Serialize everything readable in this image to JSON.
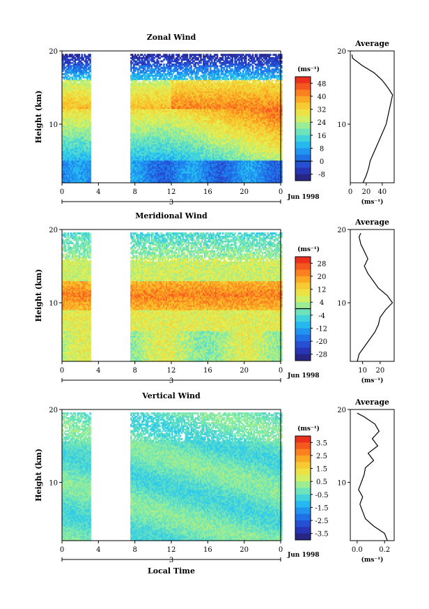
{
  "chart_data": [
    {
      "type": "heatmap",
      "title": "Zonal Wind",
      "ylabel": "Height (km)",
      "xlabel": "",
      "y_ticks": [
        "20",
        "10"
      ],
      "x_ticks": [
        "0",
        "4",
        "8",
        "12",
        "16",
        "20",
        "0"
      ],
      "date_label": "3",
      "date_suffix": "Jun 1998",
      "xlim": [
        0,
        24
      ],
      "ylim": [
        2,
        20
      ],
      "data_gap_hours": [
        3.2,
        7.4
      ],
      "colorbar": {
        "unit": "(ms⁻¹)",
        "ticks": [
          "48",
          "40",
          "32",
          "24",
          "16",
          "8",
          "0",
          "-8"
        ],
        "range": [
          -12,
          52
        ],
        "zero_line": 0
      },
      "profile": {
        "title": "Average",
        "xticks": [
          "0",
          "20",
          "40"
        ],
        "xlim": [
          0,
          55
        ],
        "xunit": "(ms⁻¹)",
        "yticks": [
          "20",
          "10"
        ],
        "heights": [
          2,
          3,
          4,
          5,
          6,
          7,
          8,
          9,
          10,
          11,
          12,
          13,
          14,
          15,
          16,
          17,
          18,
          19,
          19.5
        ],
        "values": [
          16,
          20,
          23,
          25,
          29,
          33,
          37,
          41,
          45,
          47,
          49,
          51,
          53,
          47,
          40,
          30,
          15,
          3,
          2
        ]
      }
    },
    {
      "type": "heatmap",
      "title": "Meridional Wind",
      "ylabel": "Height (km)",
      "xlabel": "",
      "y_ticks": [
        "20",
        "10"
      ],
      "x_ticks": [
        "0",
        "4",
        "8",
        "12",
        "16",
        "20",
        "0"
      ],
      "date_label": "3",
      "date_suffix": "Jun 1998",
      "xlim": [
        0,
        24
      ],
      "ylim": [
        2,
        20
      ],
      "data_gap_hours": [
        3.2,
        7.4
      ],
      "colorbar": {
        "unit": "(ms⁻¹)",
        "ticks": [
          "28",
          "20",
          "12",
          "4",
          "-4",
          "-12",
          "-20",
          "-28"
        ],
        "range": [
          -32,
          32
        ],
        "zero_line": 0
      },
      "profile": {
        "title": "Average",
        "xticks": [
          "10",
          "20"
        ],
        "xlim": [
          3,
          28
        ],
        "xunit": "(ms⁻¹)",
        "yticks": [
          "20",
          "10"
        ],
        "heights": [
          2,
          3,
          4,
          5,
          6,
          7,
          8,
          9,
          10,
          11,
          12,
          13,
          14,
          15,
          16,
          17,
          18,
          19,
          19.5
        ],
        "values": [
          7,
          8,
          11,
          14,
          17,
          19,
          20,
          23,
          27,
          24,
          19,
          16,
          13,
          11,
          13,
          11,
          9,
          8,
          9
        ]
      }
    },
    {
      "type": "heatmap",
      "title": "Vertical Wind",
      "ylabel": "Height (km)",
      "xlabel": "Local Time",
      "y_ticks": [
        "20",
        "10"
      ],
      "x_ticks": [
        "0",
        "4",
        "8",
        "12",
        "16",
        "20",
        "0"
      ],
      "date_label": "3",
      "date_suffix": "Jun 1998",
      "xlim": [
        0,
        24
      ],
      "ylim": [
        2,
        20
      ],
      "data_gap_hours": [
        3.2,
        7.4
      ],
      "colorbar": {
        "unit": "(ms⁻¹)",
        "ticks": [
          "3.5",
          "2.5",
          "1.5",
          "0.5",
          "-0.5",
          "-1.5",
          "-2.5",
          "-3.5"
        ],
        "range": [
          -4,
          4
        ]
      },
      "profile": {
        "title": "Average",
        "xticks": [
          "0.0",
          "0.2"
        ],
        "xlim": [
          -0.05,
          0.27
        ],
        "xunit": "(ms⁻¹)",
        "yticks": [
          "20",
          "10"
        ],
        "heights": [
          2,
          3,
          4,
          5,
          6,
          7,
          8,
          9,
          10,
          11,
          12,
          13,
          14,
          15,
          16,
          17,
          18,
          19,
          19.5
        ],
        "values": [
          0.22,
          0.2,
          0.12,
          0.06,
          0.04,
          0.02,
          0.04,
          0.01,
          0.03,
          0.05,
          0.06,
          0.12,
          0.08,
          0.15,
          0.11,
          0.16,
          0.13,
          0.05,
          0.0
        ]
      }
    }
  ]
}
